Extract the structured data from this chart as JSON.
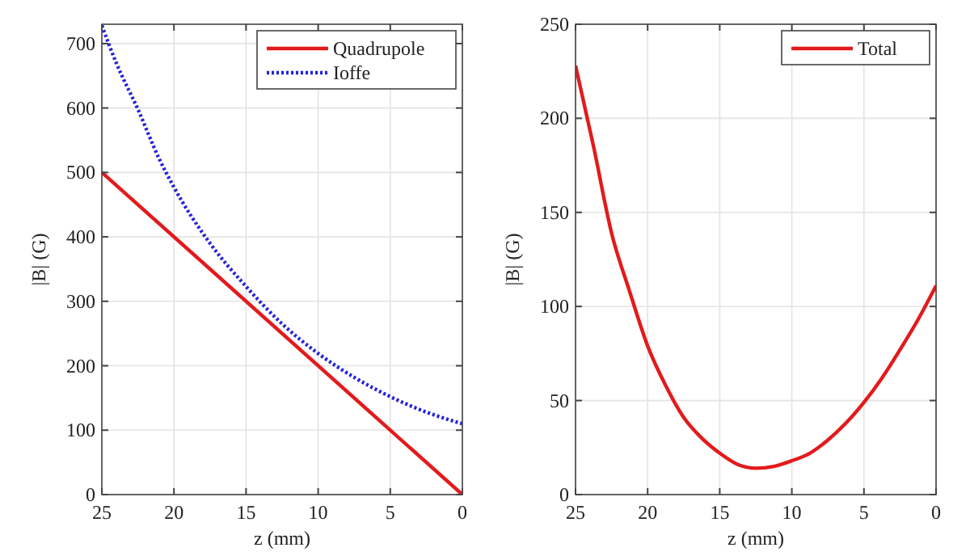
{
  "chart_data": [
    {
      "type": "line",
      "xlabel": "z (mm)",
      "ylabel": "|B| (G)",
      "xlim": [
        25,
        0
      ],
      "xticks": [
        25,
        20,
        15,
        10,
        5,
        0
      ],
      "ylim": [
        0,
        730
      ],
      "yticks": [
        0,
        100,
        200,
        300,
        400,
        500,
        600,
        700
      ],
      "grid": true,
      "legend": "top right",
      "series": [
        {
          "name": "Quadrupole",
          "color": "#e31a1c",
          "line_style": "solid",
          "x": [
            25,
            0
          ],
          "values": [
            500,
            0
          ]
        },
        {
          "name": "Ioffe",
          "color": "#2222dd",
          "line_style": "dotted",
          "x": [
            25,
            24,
            22.5,
            21,
            20,
            17.5,
            15,
            12.5,
            10,
            7.5,
            5,
            2.5,
            0
          ],
          "values": [
            728,
            670,
            598,
            520,
            477,
            390,
            323,
            265,
            219,
            182,
            152,
            128,
            110
          ]
        }
      ]
    },
    {
      "type": "line",
      "xlabel": "z (mm)",
      "ylabel": "|B| (G)",
      "xlim": [
        25,
        0
      ],
      "xticks": [
        25,
        20,
        15,
        10,
        5,
        0
      ],
      "ylim": [
        0,
        250
      ],
      "yticks": [
        0,
        50,
        100,
        150,
        200,
        250
      ],
      "grid": true,
      "legend": "top right",
      "series": [
        {
          "name": "Total",
          "color": "#e31a1c",
          "line_style": "solid",
          "x": [
            25,
            23.75,
            22.5,
            21.25,
            20,
            18.75,
            17.5,
            16.25,
            15,
            13.75,
            12.5,
            11.25,
            10,
            8.75,
            7.5,
            6.25,
            5,
            3.75,
            2.5,
            1.25,
            0
          ],
          "values": [
            228,
            185,
            139,
            108,
            79,
            58,
            41,
            30,
            22,
            16,
            14,
            15,
            18,
            22,
            29,
            38,
            49,
            62,
            77,
            93,
            111
          ]
        }
      ]
    }
  ]
}
